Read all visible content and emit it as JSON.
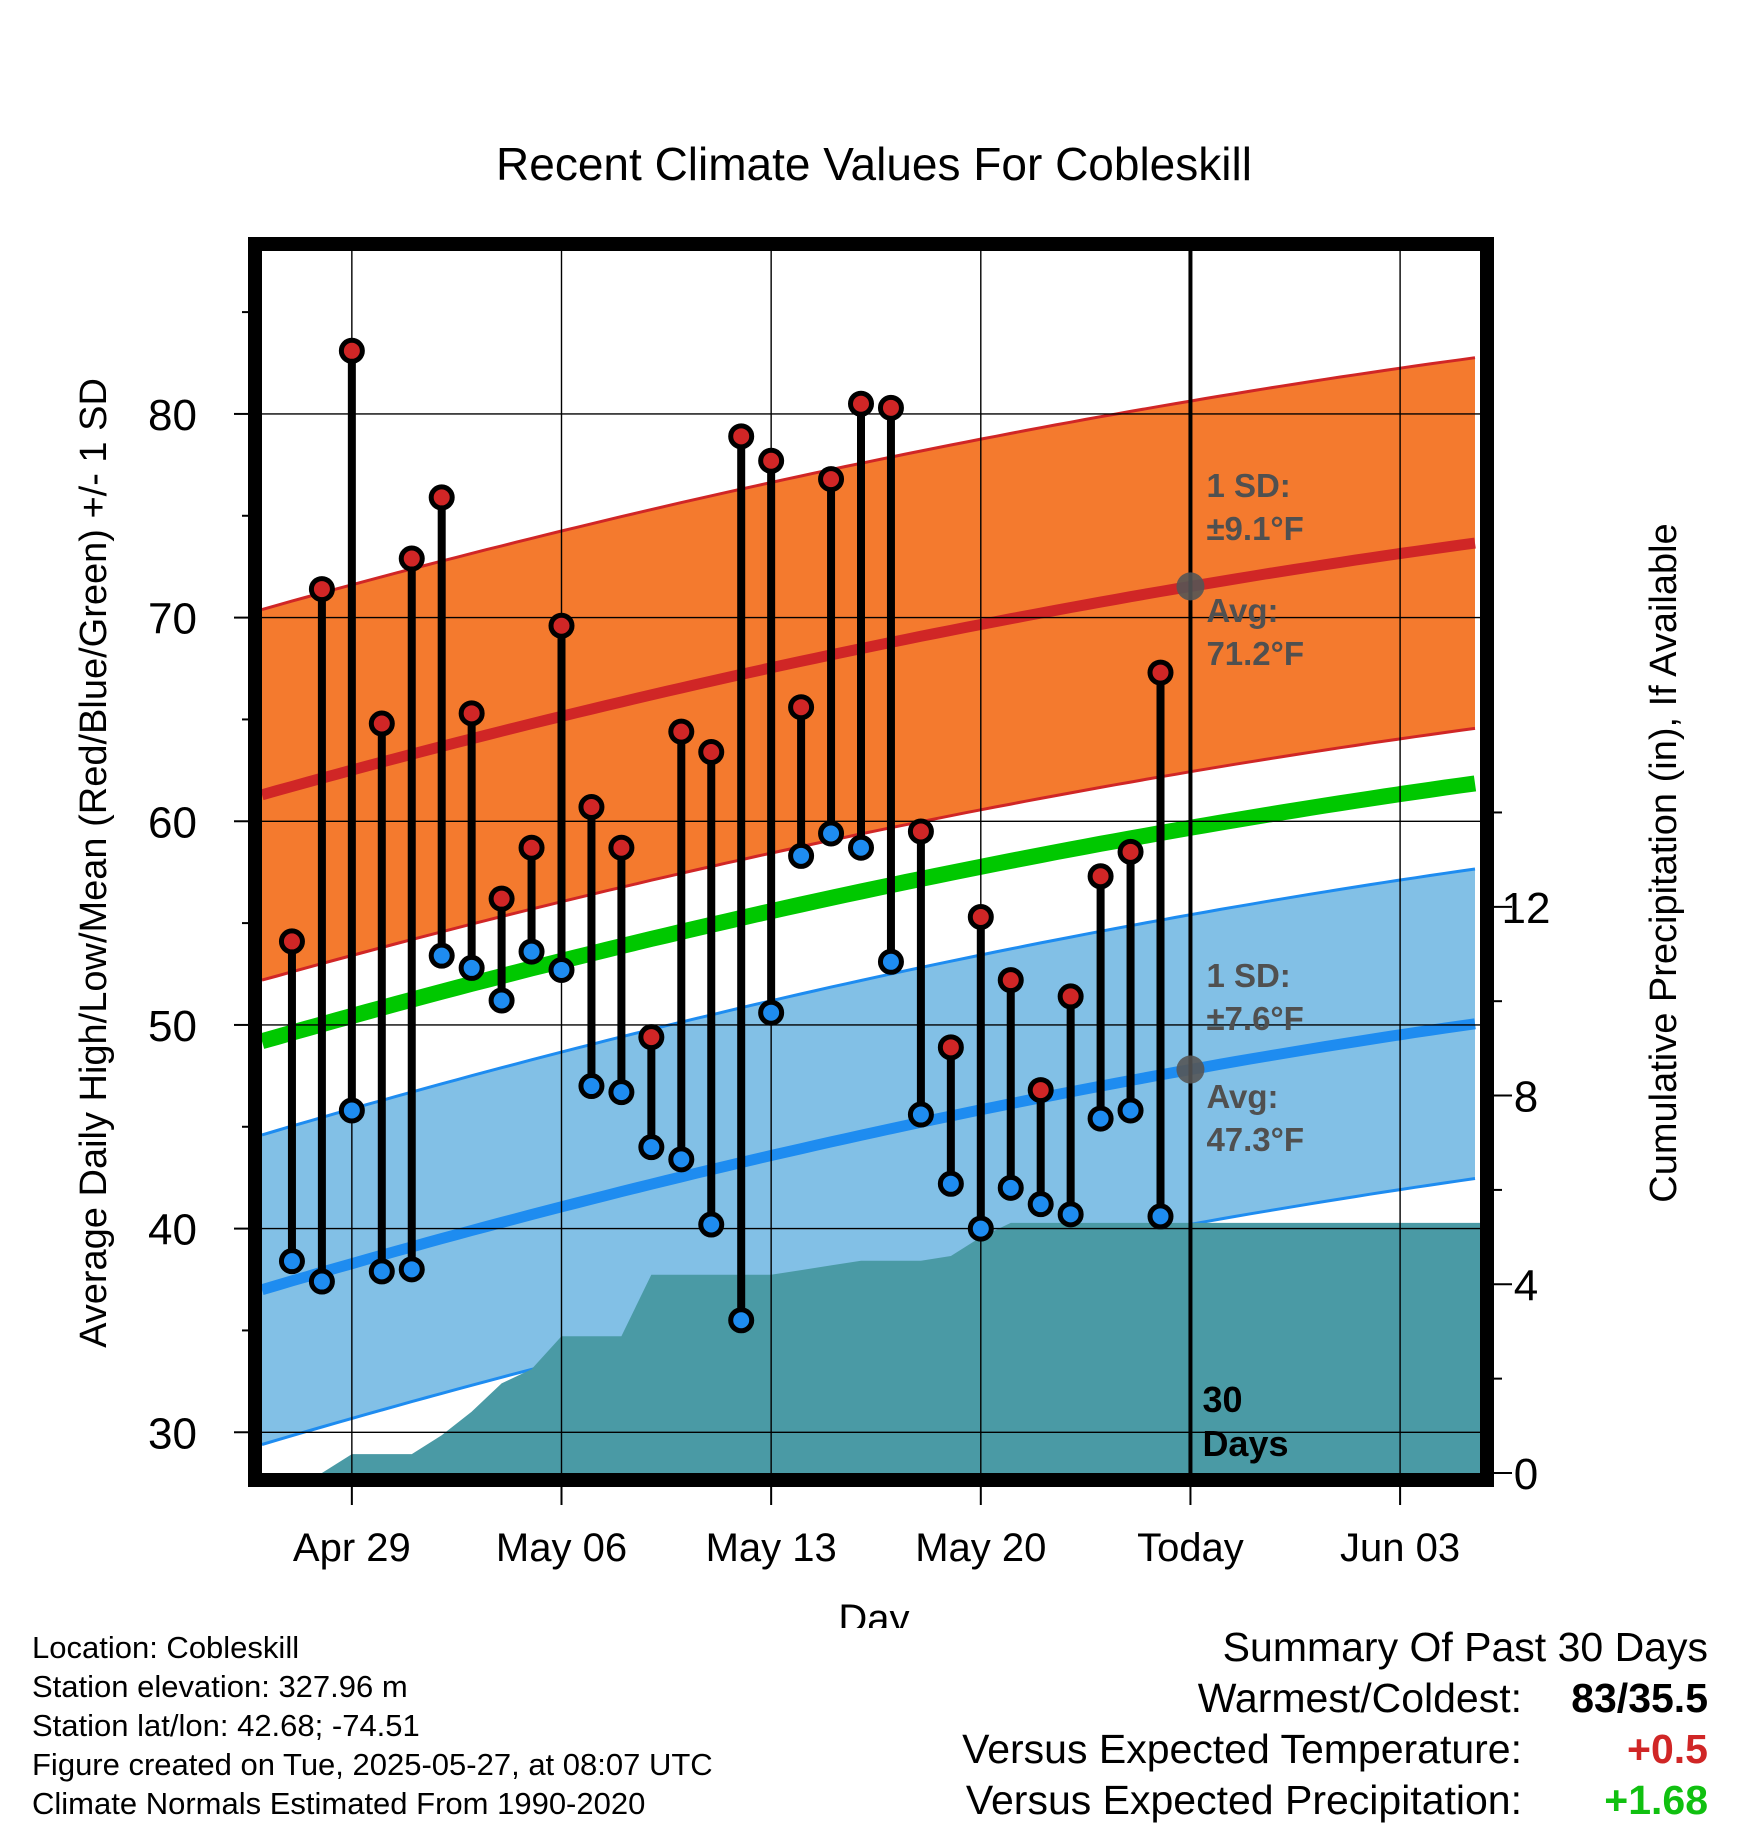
{
  "chart_data": {
    "type": "line",
    "title": "Recent Climate Values For Cobleskill",
    "xlabel": "Day",
    "ylabel": "Average Daily High/Low/Mean (Red/Blue/Green) +/- 1 SD",
    "y2label": "Cumulative Precipitation (in), If Available",
    "x_tick_labels": [
      "Apr 29",
      "May 06",
      "May 13",
      "May 20",
      "Today",
      "Jun 03"
    ],
    "y_ticks": [
      30,
      40,
      50,
      60,
      70,
      80
    ],
    "y2_ticks": [
      0,
      4,
      8,
      12
    ],
    "ylim": [
      28,
      88
    ],
    "y2lim": [
      0,
      25.9
    ],
    "grid": true,
    "today_label": "30 Days",
    "normals": {
      "high_avg_start": 61.3,
      "high_avg_end": 73.7,
      "high_sd": 9.1,
      "low_avg_start": 37.0,
      "low_avg_end": 50.1,
      "low_sd": 7.6,
      "mean_start": 49.2,
      "mean_end": 61.9,
      "colors": {
        "high_band": "#f47a2e",
        "high_line": "#d02626",
        "low_band": "#82c0e6",
        "low_line": "#1e8cf0",
        "mean_line": "#00c800",
        "precip": "#4a9aa5"
      }
    },
    "annotations": {
      "high_sd_label": "1 SD:",
      "high_sd_value": "±9.1°F",
      "high_avg_label": "Avg:",
      "high_avg_value": "71.2°F",
      "low_sd_label": "1 SD:",
      "low_sd_value": "±7.6°F",
      "low_avg_label": "Avg:",
      "low_avg_value": "47.3°F"
    },
    "series": [
      {
        "name": "High",
        "values": [
          54.1,
          71.4,
          83.1,
          64.8,
          72.9,
          75.9,
          65.3,
          56.2,
          58.7,
          69.6,
          60.7,
          58.7,
          49.4,
          64.4,
          63.4,
          78.9,
          77.7,
          65.6,
          76.8,
          80.5,
          80.3,
          59.5,
          48.9,
          55.3,
          52.2,
          46.8,
          51.4,
          57.3,
          58.5,
          67.3
        ]
      },
      {
        "name": "Low",
        "values": [
          38.4,
          37.4,
          45.8,
          37.9,
          38.0,
          53.4,
          52.8,
          51.2,
          53.6,
          52.7,
          47.0,
          46.7,
          44.0,
          43.4,
          40.2,
          35.5,
          50.6,
          58.3,
          59.4,
          58.7,
          53.1,
          45.6,
          42.2,
          40.0,
          42.0,
          41.2,
          40.7,
          45.4,
          45.8,
          40.6
        ]
      }
    ],
    "precip_cumulative": [
      0,
      0.4,
      0.4,
      0.4,
      0.8,
      1.3,
      1.9,
      2.2,
      2.9,
      2.9,
      2.9,
      4.2,
      4.2,
      4.2,
      4.2,
      4.2,
      4.3,
      4.4,
      4.5,
      4.5,
      4.5,
      4.6,
      5.0,
      5.3,
      5.3,
      5.3,
      5.3,
      5.3,
      5.3,
      5.3,
      5.3,
      5.3,
      5.3,
      5.3,
      5.3,
      5.3,
      5.3,
      5.3,
      5.3,
      5.3
    ]
  },
  "info": {
    "location": "Location: Cobleskill",
    "elevation": "Station elevation: 327.96 m",
    "latlon": "Station lat/lon: 42.68; -74.51",
    "created": "Figure created on Tue, 2025-05-27, at 08:07 UTC",
    "normals": "Climate Normals Estimated From 1990-2020"
  },
  "summary": {
    "title": "Summary Of Past 30 Days",
    "warm_cold_label": "Warmest/Coldest:",
    "warm_cold_value": "83/35.5",
    "temp_label": "Versus Expected Temperature:",
    "temp_value": "+0.5",
    "temp_color": "#d02626",
    "precip_label": "Versus Expected Precipitation:",
    "precip_value": "+1.68",
    "precip_color": "#10c010"
  }
}
